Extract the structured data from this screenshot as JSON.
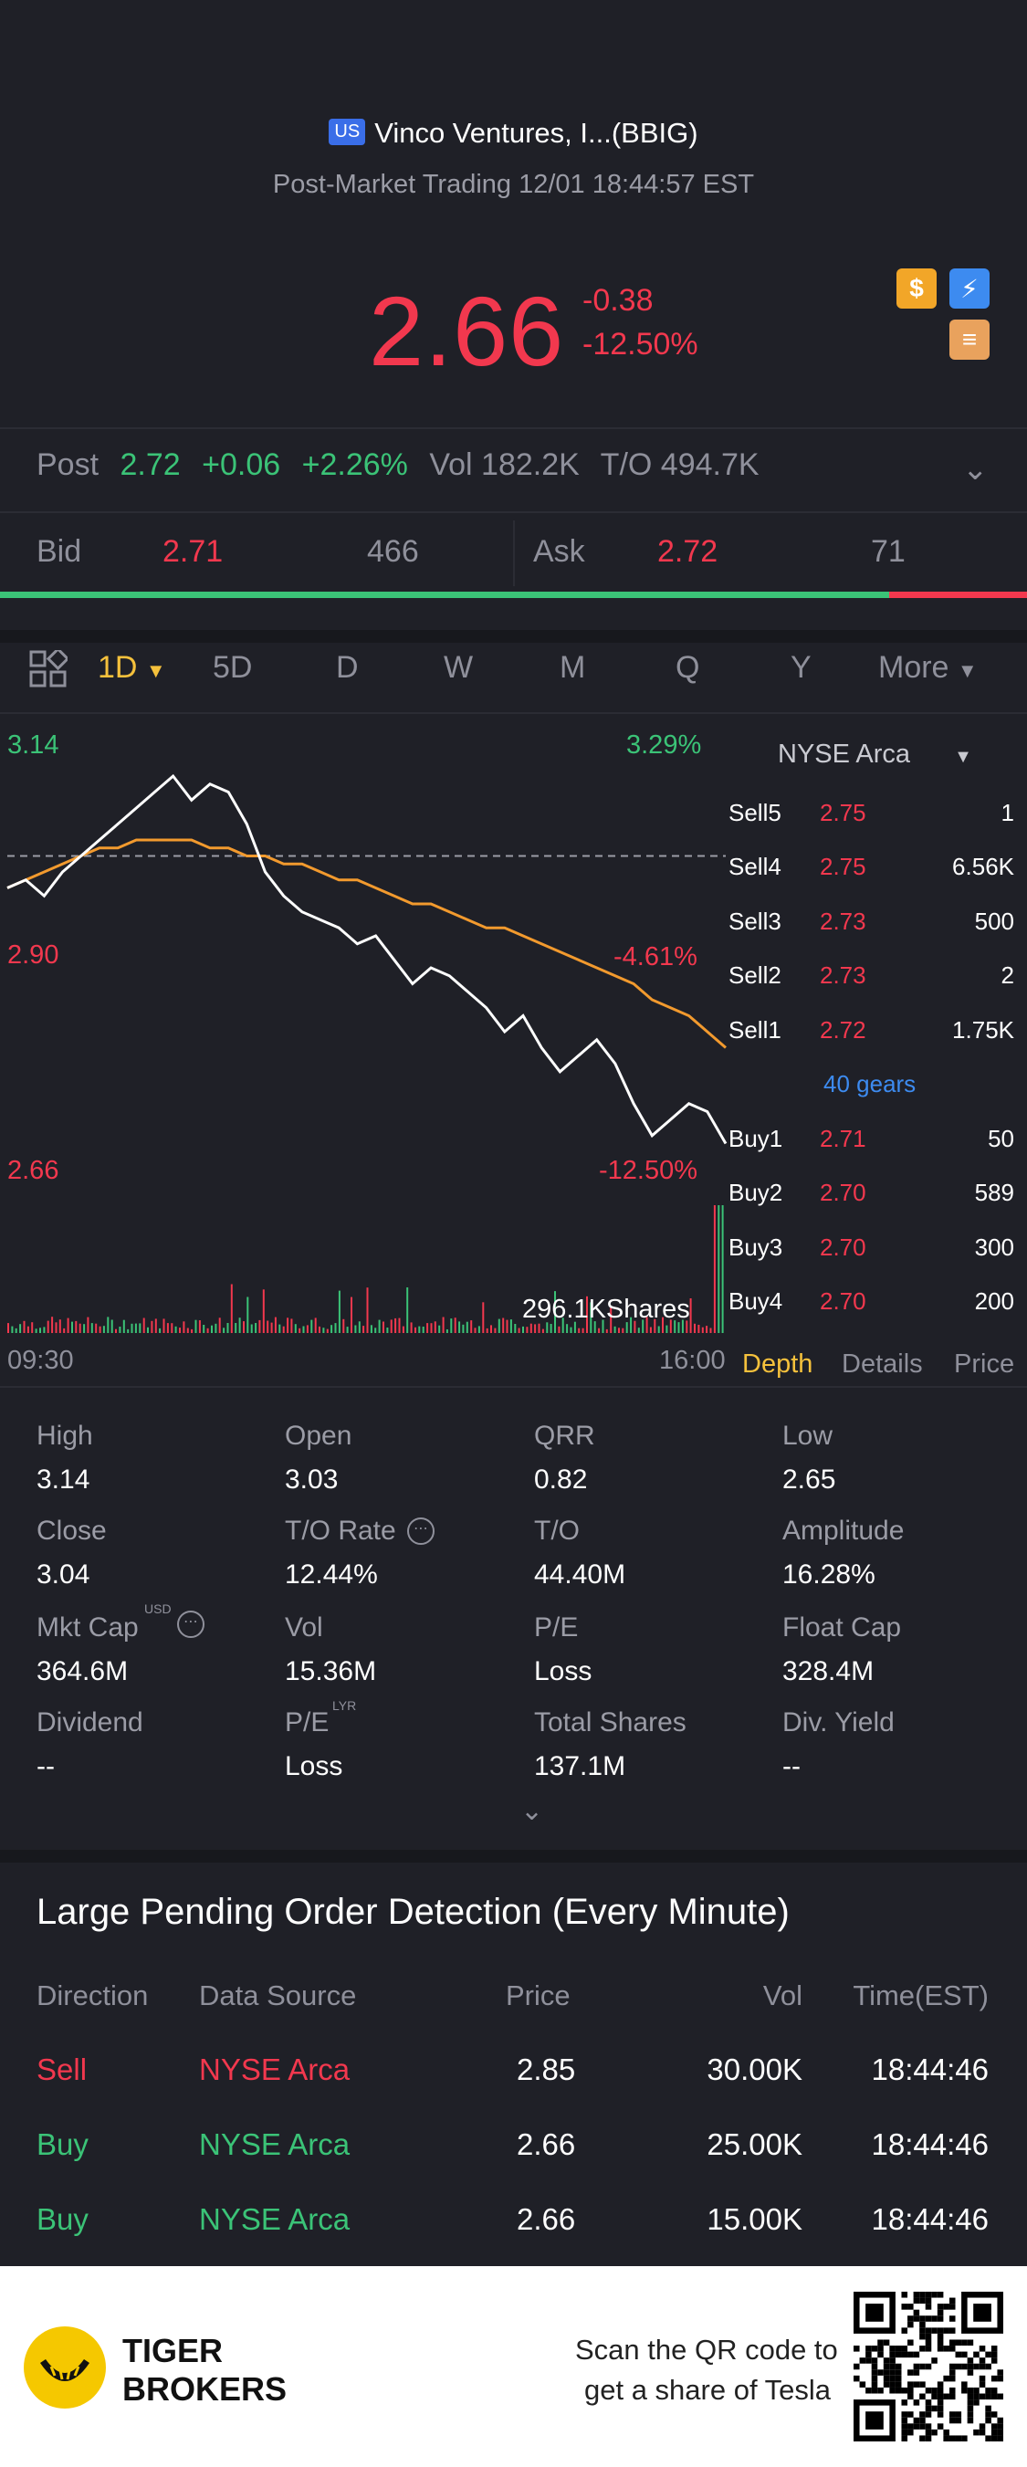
{
  "header": {
    "flag": "US",
    "title": "Vinco Ventures, I...(BBIG)",
    "subtitle": "Post-Market Trading 12/01 18:44:57 EST",
    "price": "2.66",
    "change": "-0.38",
    "change_pct": "-12.50%",
    "badges": [
      "dollar-icon",
      "flash-icon",
      "stack-icon"
    ]
  },
  "post": {
    "label": "Post",
    "price": "2.72",
    "change": "+0.06",
    "change_pct": "+2.26%",
    "vol": "Vol 182.2K",
    "turnover": "T/O 494.7K"
  },
  "bidask": {
    "bid_label": "Bid",
    "bid_price": "2.71",
    "bid_size": "466",
    "ask_label": "Ask",
    "ask_price": "2.72",
    "ask_size": "71",
    "bid_share": 0.866
  },
  "tabs": {
    "items": [
      "1D",
      "5D",
      "D",
      "W",
      "M",
      "Q",
      "Y",
      "More"
    ],
    "active": "1D"
  },
  "chart_data": {
    "type": "line",
    "ymax_label": "3.14",
    "ymid_label": "2.90",
    "ymin_label": "2.66",
    "pct_top": "3.29%",
    "pct_mid": "-4.61%",
    "pct_bottom": "-12.50%",
    "x_start": "09:30",
    "x_end": "16:00",
    "volume_label": "296.1KShares",
    "prev_close": 3.04,
    "ylim": [
      2.66,
      3.14
    ],
    "series": [
      {
        "values": [
          3.0,
          3.01,
          2.99,
          3.02,
          3.04,
          3.06,
          3.08,
          3.1,
          3.12,
          3.14,
          3.11,
          3.13,
          3.12,
          3.08,
          3.02,
          2.99,
          2.97,
          2.96,
          2.95,
          2.93,
          2.94,
          2.91,
          2.88,
          2.9,
          2.89,
          2.87,
          2.85,
          2.82,
          2.84,
          2.8,
          2.77,
          2.79,
          2.81,
          2.78,
          2.73,
          2.69,
          2.71,
          2.73,
          2.72,
          2.68
        ]
      },
      {
        "values": [
          3.0,
          3.01,
          3.02,
          3.03,
          3.04,
          3.05,
          3.05,
          3.06,
          3.06,
          3.06,
          3.06,
          3.05,
          3.05,
          3.04,
          3.04,
          3.03,
          3.03,
          3.02,
          3.01,
          3.01,
          3.0,
          2.99,
          2.98,
          2.98,
          2.97,
          2.96,
          2.95,
          2.95,
          2.94,
          2.93,
          2.92,
          2.91,
          2.9,
          2.89,
          2.88,
          2.86,
          2.85,
          2.84,
          2.82,
          2.8
        ]
      }
    ]
  },
  "orderbook": {
    "exchange": "NYSE Arca",
    "sells": [
      {
        "name": "Sell5",
        "price": "2.75",
        "vol": "1"
      },
      {
        "name": "Sell4",
        "price": "2.75",
        "vol": "6.56K"
      },
      {
        "name": "Sell3",
        "price": "2.73",
        "vol": "500"
      },
      {
        "name": "Sell2",
        "price": "2.73",
        "vol": "2"
      },
      {
        "name": "Sell1",
        "price": "2.72",
        "vol": "1.75K"
      }
    ],
    "gears": "40 gears",
    "buys": [
      {
        "name": "Buy1",
        "price": "2.71",
        "vol": "50"
      },
      {
        "name": "Buy2",
        "price": "2.70",
        "vol": "589"
      },
      {
        "name": "Buy3",
        "price": "2.70",
        "vol": "300"
      },
      {
        "name": "Buy4",
        "price": "2.70",
        "vol": "200"
      }
    ],
    "tabs": [
      "Depth",
      "Details",
      "Price"
    ]
  },
  "stats": [
    {
      "label": "High",
      "value": "3.14"
    },
    {
      "label": "Open",
      "value": "3.03"
    },
    {
      "label": "QRR",
      "value": "0.82"
    },
    {
      "label": "Low",
      "value": "2.65"
    },
    {
      "label": "Close",
      "value": "3.04"
    },
    {
      "label": "T/O Rate",
      "value": "12.44%"
    },
    {
      "label": "T/O",
      "value": "44.40M"
    },
    {
      "label": "Amplitude",
      "value": "16.28%"
    },
    {
      "label": "Mkt Cap",
      "value": "364.6M"
    },
    {
      "label": "Vol",
      "value": "15.36M"
    },
    {
      "label": "P/E",
      "value": "Loss"
    },
    {
      "label": "Float Cap",
      "value": "328.4M"
    },
    {
      "label": "Dividend",
      "value": "--"
    },
    {
      "label": "P/E",
      "value": "Loss"
    },
    {
      "label": "Total Shares",
      "value": "137.1M"
    },
    {
      "label": "Div. Yield",
      "value": "--"
    }
  ],
  "stats_sup": {
    "usd": "USD",
    "lyr": "LYR"
  },
  "large_orders": {
    "title": "Large Pending Order Detection (Every Minute)",
    "headers": [
      "Direction",
      "Data Source",
      "Price",
      "Vol",
      "Time(EST)"
    ],
    "rows": [
      {
        "direction": "Sell",
        "source": "NYSE Arca",
        "price": "2.85",
        "vol": "30.00K",
        "time": "18:44:46"
      },
      {
        "direction": "Buy",
        "source": "NYSE Arca",
        "price": "2.66",
        "vol": "25.00K",
        "time": "18:44:46"
      },
      {
        "direction": "Buy",
        "source": "NYSE Arca",
        "price": "2.66",
        "vol": "15.00K",
        "time": "18:44:46"
      }
    ]
  },
  "footer": {
    "brand1": "TIGER",
    "brand2": "BROKERS",
    "scan1": "Scan the QR code to",
    "scan2": "get a share of Tesla"
  },
  "colors": {
    "up": "#3bc377",
    "down": "#f2384e",
    "accent": "#f5c13c",
    "link": "#3d8bf0"
  }
}
